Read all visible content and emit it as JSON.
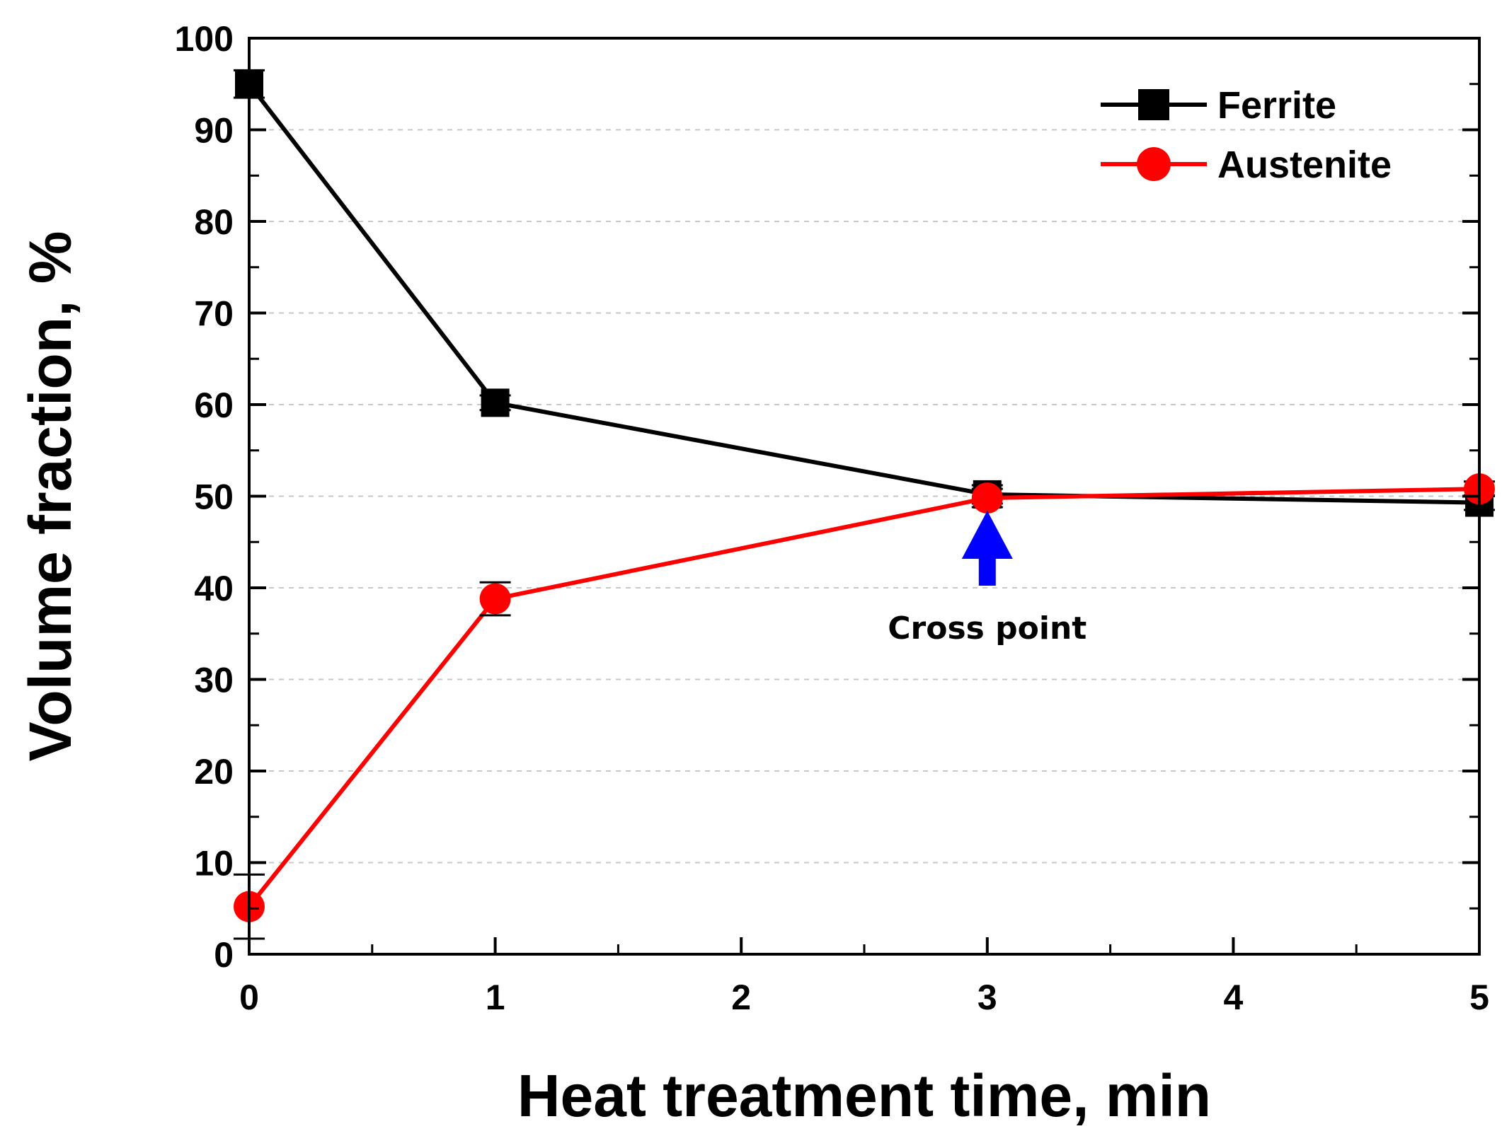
{
  "chart_data": {
    "type": "line",
    "title": "",
    "xlabel": "Heat treatment time, min",
    "ylabel": "Volume fraction, %",
    "xlim": [
      0,
      5
    ],
    "ylim": [
      0,
      100
    ],
    "x_ticks": [
      0,
      1,
      2,
      3,
      4,
      5
    ],
    "x_tick_labels": [
      "0",
      "1",
      "2",
      "3",
      "4",
      "5"
    ],
    "y_ticks": [
      0,
      10,
      20,
      30,
      40,
      50,
      60,
      70,
      80,
      90,
      100
    ],
    "y_tick_labels": [
      "0",
      "10",
      "20",
      "30",
      "40",
      "50",
      "60",
      "70",
      "80",
      "90",
      "100"
    ],
    "grid": "horizontal dashed",
    "legend_position": "top-right",
    "series": [
      {
        "name": "Ferrite",
        "color": "#000000",
        "marker": "square",
        "x": [
          0,
          1,
          3,
          5
        ],
        "y": [
          95,
          60.2,
          50.2,
          49.3
        ],
        "error": [
          1.5,
          0.8,
          1.0,
          0.8
        ]
      },
      {
        "name": "Austenite",
        "color": "#ff0000",
        "marker": "circle",
        "x": [
          0,
          1,
          3,
          5
        ],
        "y": [
          5.2,
          38.8,
          49.8,
          50.8
        ],
        "error": [
          3.5,
          1.8,
          1.0,
          0.8
        ]
      }
    ],
    "annotations": [
      {
        "text": "Cross point",
        "x": 3,
        "y": 50,
        "arrow_color": "#0000ff"
      }
    ]
  }
}
